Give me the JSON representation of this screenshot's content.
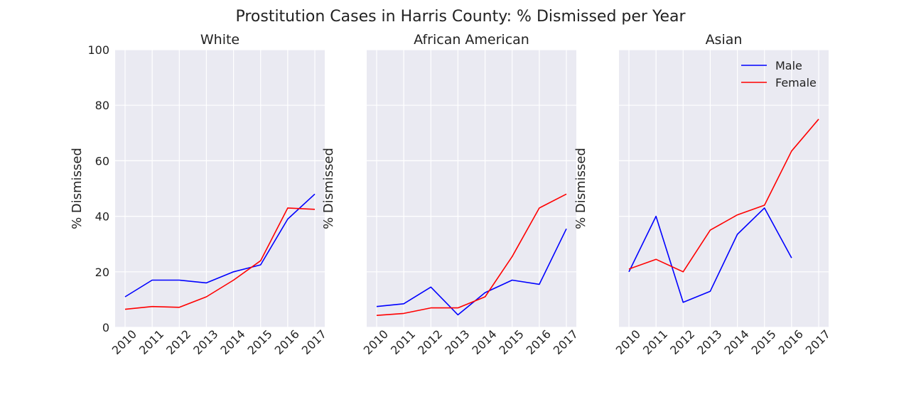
{
  "chart_data": {
    "type": "line",
    "title": "Prostitution Cases in Harris County: % Dismissed per Year",
    "ylim": [
      0,
      100
    ],
    "yticks": [
      0,
      20,
      40,
      60,
      80,
      100
    ],
    "ylabel": "% Dismissed",
    "x": [
      "2010",
      "2011",
      "2012",
      "2013",
      "2014",
      "2015",
      "2016",
      "2017"
    ],
    "legend": {
      "position": "top-right",
      "entries": [
        "Male",
        "Female"
      ]
    },
    "colors": {
      "male": "#0000ff",
      "female": "#ff0000",
      "plot_bg": "#eaeaf2",
      "grid": "#ffffff"
    },
    "panels": [
      {
        "title": "White",
        "series": [
          {
            "name": "Male",
            "values": [
              11,
              17,
              17,
              16,
              20,
              22.5,
              39,
              48
            ]
          },
          {
            "name": "Female",
            "values": [
              6.5,
              7.5,
              7.2,
              11,
              17,
              24,
              43,
              42.5
            ]
          }
        ]
      },
      {
        "title": "African American",
        "series": [
          {
            "name": "Male",
            "values": [
              7.5,
              8.5,
              14.5,
              4.5,
              12.5,
              17,
              15.5,
              35.5
            ]
          },
          {
            "name": "Female",
            "values": [
              4.3,
              5,
              7,
              7,
              11,
              25.5,
              43,
              48
            ]
          }
        ]
      },
      {
        "title": "Asian",
        "series": [
          {
            "name": "Male",
            "values": [
              20,
              40,
              9,
              13,
              33.5,
              43,
              25,
              null
            ]
          },
          {
            "name": "Female",
            "values": [
              21,
              24.5,
              20,
              35,
              40.5,
              44,
              63.5,
              75
            ]
          }
        ]
      }
    ]
  }
}
